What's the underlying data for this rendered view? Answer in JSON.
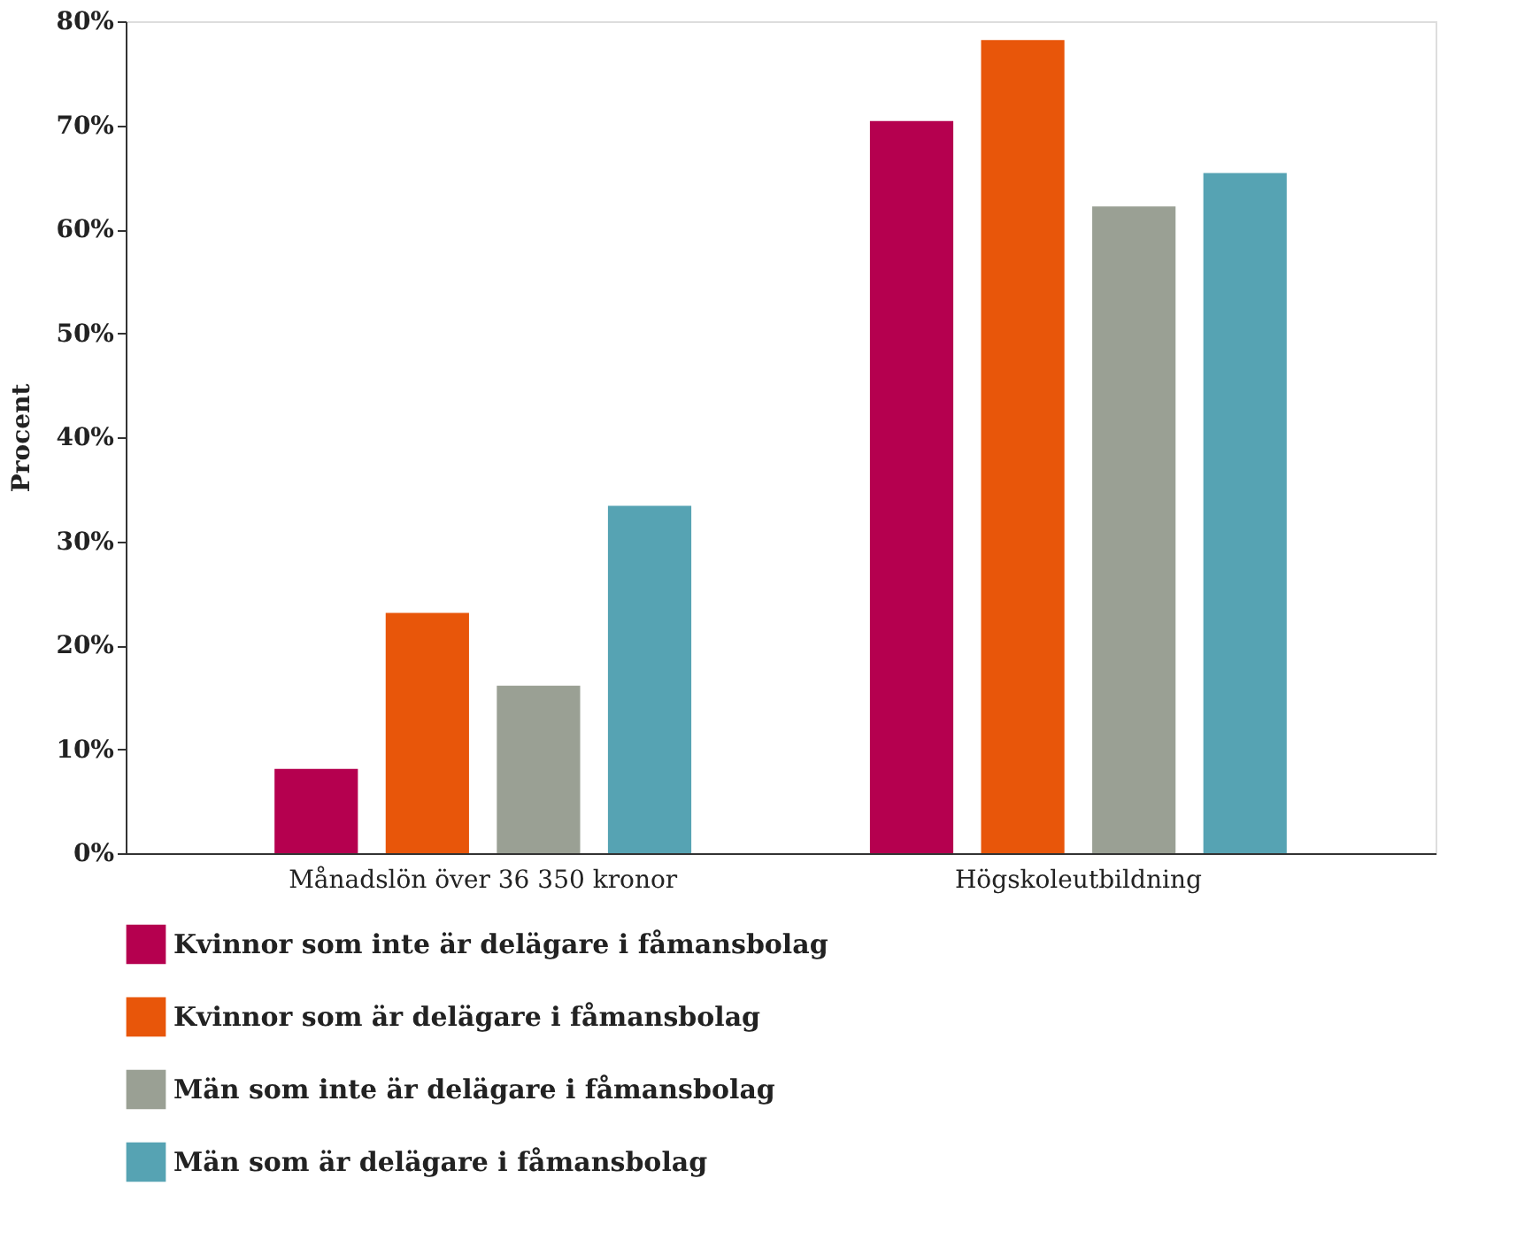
{
  "chart_data": {
    "type": "bar",
    "ylabel": "Procent",
    "categories": [
      "Månadslön över 36 350 kronor",
      "Högskoleutbildning"
    ],
    "series": [
      {
        "name": "Kvinnor som inte är delägare i fåmansbolag",
        "color": "#b5004f",
        "values": [
          8.1,
          70.4
        ]
      },
      {
        "name": "Kvinnor som är delägare i fåmansbolag",
        "color": "#e8560a",
        "values": [
          23.1,
          78.2
        ]
      },
      {
        "name": "Män som inte är delägare i fåmansbolag",
        "color": "#9aa094",
        "values": [
          16.1,
          62.2
        ]
      },
      {
        "name": "Män som är delägare i fåmansbolag",
        "color": "#56a3b3",
        "values": [
          33.4,
          65.4
        ]
      }
    ],
    "ylim": [
      0,
      80
    ],
    "yticks": [
      {
        "value": 0,
        "label": "0%"
      },
      {
        "value": 10,
        "label": "10%"
      },
      {
        "value": 20,
        "label": "20%"
      },
      {
        "value": 30,
        "label": "30%"
      },
      {
        "value": 40,
        "label": "40%"
      },
      {
        "value": 50,
        "label": "50%"
      },
      {
        "value": 60,
        "label": "60%"
      },
      {
        "value": 70,
        "label": "70%"
      },
      {
        "value": 80,
        "label": "80%"
      }
    ],
    "grid": false,
    "legend": "bottom"
  }
}
